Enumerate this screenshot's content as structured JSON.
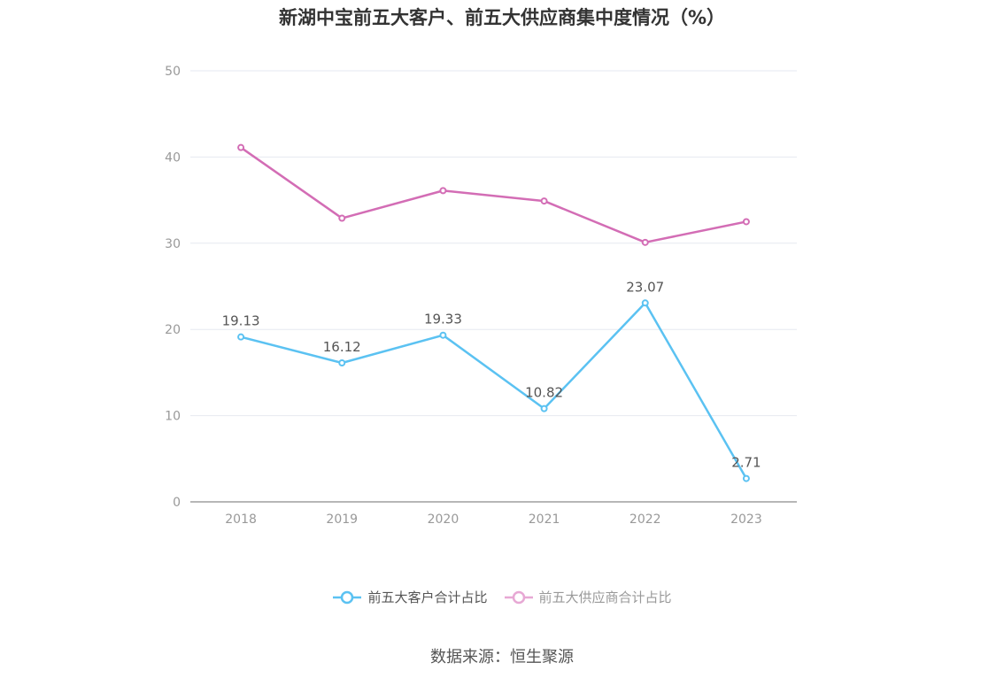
{
  "chart_data": {
    "type": "line",
    "title": "新湖中宝前五大客户、前五大供应商集中度情况（%）",
    "categories": [
      "2018",
      "2019",
      "2020",
      "2021",
      "2022",
      "2023"
    ],
    "ylim": [
      0,
      50
    ],
    "yticks": [
      "0",
      "10",
      "20",
      "30",
      "40",
      "50"
    ],
    "grid": true,
    "legend_position": "bottom",
    "series": [
      {
        "name": "前五大客户合计占比",
        "values": [
          19.13,
          16.12,
          19.33,
          10.82,
          23.07,
          2.71
        ],
        "labels": [
          "19.13",
          "16.12",
          "19.33",
          "10.82",
          "23.07",
          "2.71"
        ],
        "color": "#5bc2f2",
        "show_labels": true
      },
      {
        "name": "前五大供应商合计占比",
        "values": [
          41.1,
          32.9,
          36.1,
          34.9,
          30.1,
          32.5
        ],
        "color": "#d36db5",
        "show_labels": false
      }
    ]
  },
  "legend": {
    "items": [
      {
        "label": "前五大客户合计占比",
        "color": "#5bc2f2",
        "text_color": "#555555"
      },
      {
        "label": "前五大供应商合计占比",
        "color": "#e7a8d4",
        "text_color": "#999999"
      }
    ]
  },
  "source": "数据来源：恒生聚源"
}
